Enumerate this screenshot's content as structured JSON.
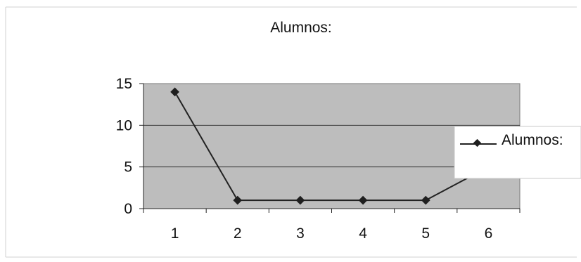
{
  "chart_data": {
    "type": "line",
    "title": "Alumnos:",
    "categories": [
      "1",
      "2",
      "3",
      "4",
      "5",
      "6"
    ],
    "series": [
      {
        "name": "Alumnos:",
        "values": [
          14,
          1,
          1,
          1,
          1,
          5
        ]
      }
    ],
    "ylim": [
      0,
      15
    ],
    "yticks": [
      "0",
      "5",
      "10",
      "15"
    ],
    "grid": true,
    "legend": "right",
    "colors": {
      "plot_background": "#bdbdbd",
      "line": "#222222",
      "marker": "#1f1f1f"
    }
  }
}
